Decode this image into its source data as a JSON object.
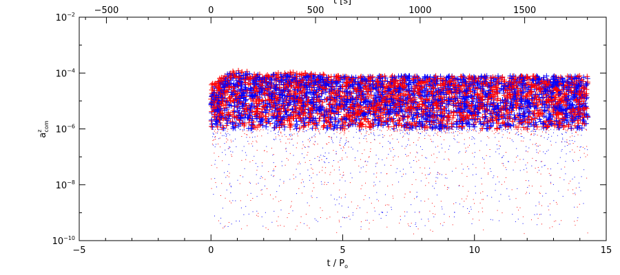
{
  "chart_data": {
    "type": "scatter",
    "xlabel": "t / P",
    "xlabel_sub": "o",
    "top_xlabel": "t [s]",
    "ylabel": "a",
    "ylabel_sup": "z",
    "ylabel_sub": "com",
    "xlim": [
      -5,
      15
    ],
    "top_xlim": [
      -630,
      1890
    ],
    "ylim_log10": [
      -10,
      -2
    ],
    "yscale": "log",
    "x_ticks": [
      -5,
      0,
      5,
      10,
      15
    ],
    "x_tick_labels": [
      "−5",
      "0",
      "5",
      "10",
      "15"
    ],
    "top_x_ticks": [
      -500,
      0,
      500,
      1000,
      1500
    ],
    "top_x_tick_labels": [
      "−500",
      "0",
      "500",
      "1000",
      "1500"
    ],
    "y_ticks_log10": [
      -10,
      -8,
      -6,
      -4,
      -2
    ],
    "y_tick_mantissa": "10",
    "y_tick_exponents": [
      "−10",
      "−8",
      "−6",
      "−4",
      "−2"
    ],
    "series": [
      {
        "color": "#0000ff",
        "x_range": [
          0,
          14.3
        ],
        "band_log10": [
          -6,
          -4.35
        ],
        "sparse_floor_log10": -9.5,
        "peak_envelope": [
          [
            0,
            -4.4
          ],
          [
            0.5,
            -4.05
          ],
          [
            1.0,
            -3.95
          ],
          [
            2.0,
            -4.05
          ],
          [
            3.0,
            -4.05
          ],
          [
            5.0,
            -4.1
          ],
          [
            14.3,
            -4.1
          ]
        ]
      },
      {
        "color": "#ff0000",
        "x_range": [
          0,
          14.3
        ],
        "band_log10": [
          -6,
          -4.35
        ],
        "sparse_floor_log10": -9.8,
        "peak_envelope": [
          [
            0,
            -4.4
          ],
          [
            0.5,
            -4.05
          ],
          [
            1.0,
            -3.85
          ],
          [
            2.0,
            -4.05
          ],
          [
            3.0,
            -3.95
          ],
          [
            5.0,
            -4.1
          ],
          [
            14.3,
            -4.1
          ]
        ]
      }
    ]
  }
}
